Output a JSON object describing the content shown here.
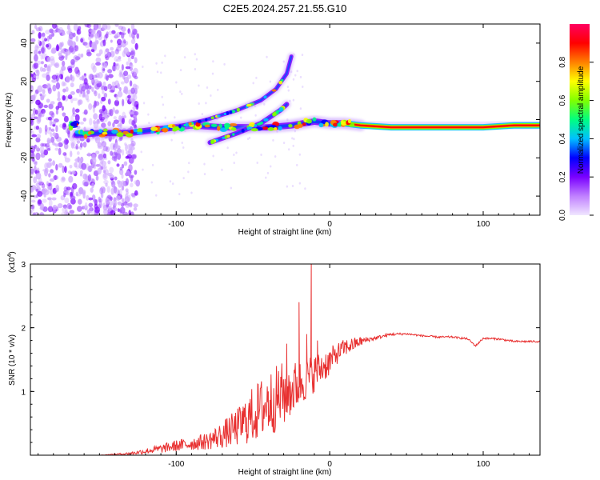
{
  "figure": {
    "title": "C2E5.2024.257.21.55.G10"
  },
  "chart_data": [
    {
      "type": "heatmap",
      "title": "C2E5.2024.257.21.55.G10",
      "xlabel": "Height of straight line (km)",
      "ylabel": "Frequency (Hz)",
      "xlim": [
        -195,
        137
      ],
      "ylim": [
        -50,
        50
      ],
      "xticks": [
        -100,
        0,
        100
      ],
      "xtick_labels": [
        "-100",
        "0",
        "100"
      ],
      "yticks": [
        -40,
        -20,
        0,
        20,
        40
      ],
      "ytick_labels": [
        "-40",
        "-20",
        "0",
        "20",
        "40"
      ],
      "colorbar": {
        "label": "Normalized spectral amplitude",
        "range": [
          0,
          1
        ],
        "ticks": [
          0,
          0.2,
          0.4,
          0.6,
          0.8
        ],
        "tick_labels": [
          "0.0",
          "0.2",
          "0.4",
          "0.6",
          "0.8"
        ],
        "colors": [
          "#f0e6ff",
          "#c080ff",
          "#7a00ff",
          "#0000ff",
          "#00c0ff",
          "#00ff80",
          "#80ff00",
          "#ffff00",
          "#ff8000",
          "#ff0000",
          "#ff0060"
        ]
      },
      "main_trace": [
        {
          "x": -165,
          "y": -8
        },
        {
          "x": -150,
          "y": -7
        },
        {
          "x": -130,
          "y": -7
        },
        {
          "x": -110,
          "y": -5
        },
        {
          "x": -90,
          "y": -3
        },
        {
          "x": -70,
          "y": -4
        },
        {
          "x": -55,
          "y": -4
        },
        {
          "x": -40,
          "y": -4
        },
        {
          "x": -25,
          "y": -3
        },
        {
          "x": -10,
          "y": -1
        },
        {
          "x": 0,
          "y": -2
        },
        {
          "x": 10,
          "y": -2
        },
        {
          "x": 20,
          "y": -3
        },
        {
          "x": 40,
          "y": -4
        },
        {
          "x": 60,
          "y": -4
        },
        {
          "x": 80,
          "y": -4
        },
        {
          "x": 100,
          "y": -4
        },
        {
          "x": 120,
          "y": -3
        },
        {
          "x": 137,
          "y": -3
        }
      ],
      "branch_upper": [
        {
          "x": -100,
          "y": -4
        },
        {
          "x": -80,
          "y": 0
        },
        {
          "x": -60,
          "y": 5
        },
        {
          "x": -45,
          "y": 10
        },
        {
          "x": -35,
          "y": 16
        },
        {
          "x": -28,
          "y": 24
        },
        {
          "x": -25,
          "y": 33
        }
      ],
      "branch_lower": [
        {
          "x": -78,
          "y": -12
        },
        {
          "x": -60,
          "y": -7
        },
        {
          "x": -45,
          "y": -2
        },
        {
          "x": -32,
          "y": 5
        },
        {
          "x": -28,
          "y": 8
        }
      ]
    },
    {
      "type": "line",
      "xlabel": "Height of straight line (km)",
      "ylabel": "SNR (10 * v/v)",
      "multiplier": "(x10",
      "multiplier_exp": "4",
      "multiplier_close": ")",
      "xlim": [
        -195,
        137
      ],
      "ylim": [
        0,
        30000
      ],
      "xticks": [
        -100,
        0,
        100
      ],
      "xtick_labels": [
        "-100",
        "0",
        "100"
      ],
      "yticks": [
        10000,
        20000,
        30000
      ],
      "ytick_labels": [
        "1",
        "2",
        "3"
      ],
      "color": "#e83030",
      "series": [
        {
          "x": [
            -195,
            -170,
            -150,
            -130,
            -120,
            -110,
            -100,
            -90,
            -80,
            -70,
            -60,
            -50,
            -40,
            -30,
            -25,
            -20,
            -15,
            -10,
            -5,
            0,
            5,
            10,
            15,
            20,
            25,
            30,
            40,
            50,
            60,
            70,
            80,
            90,
            95,
            100,
            110,
            120,
            137
          ],
          "y": [
            0,
            0,
            0,
            200,
            500,
            800,
            1200,
            1500,
            1800,
            2500,
            3500,
            5000,
            6500,
            8000,
            9000,
            10000,
            11000,
            12000,
            13000,
            14000,
            15500,
            16500,
            17000,
            17600,
            18000,
            18300,
            18900,
            19000,
            18700,
            18500,
            18500,
            18200,
            17100,
            18300,
            18200,
            17800,
            17800
          ],
          "noise_amp": [
            0,
            0,
            0,
            300,
            600,
            900,
            1200,
            1400,
            1800,
            2800,
            4000,
            6000,
            7000,
            7000,
            6000,
            5000,
            4500,
            4000,
            3500,
            3000,
            2200,
            1800,
            1500,
            1000,
            600,
            400,
            300,
            200,
            200,
            200,
            200,
            200,
            200,
            200,
            200,
            200,
            200
          ]
        }
      ],
      "spikes": [
        {
          "x": -100,
          "y": 1500
        },
        {
          "x": -75,
          "y": 3000
        },
        {
          "x": -40,
          "y": 10000
        },
        {
          "x": -28,
          "y": 17500
        },
        {
          "x": -20,
          "y": 24000
        },
        {
          "x": -15,
          "y": 19000
        },
        {
          "x": -12,
          "y": 30000
        },
        {
          "x": -8,
          "y": 18000
        }
      ]
    }
  ]
}
